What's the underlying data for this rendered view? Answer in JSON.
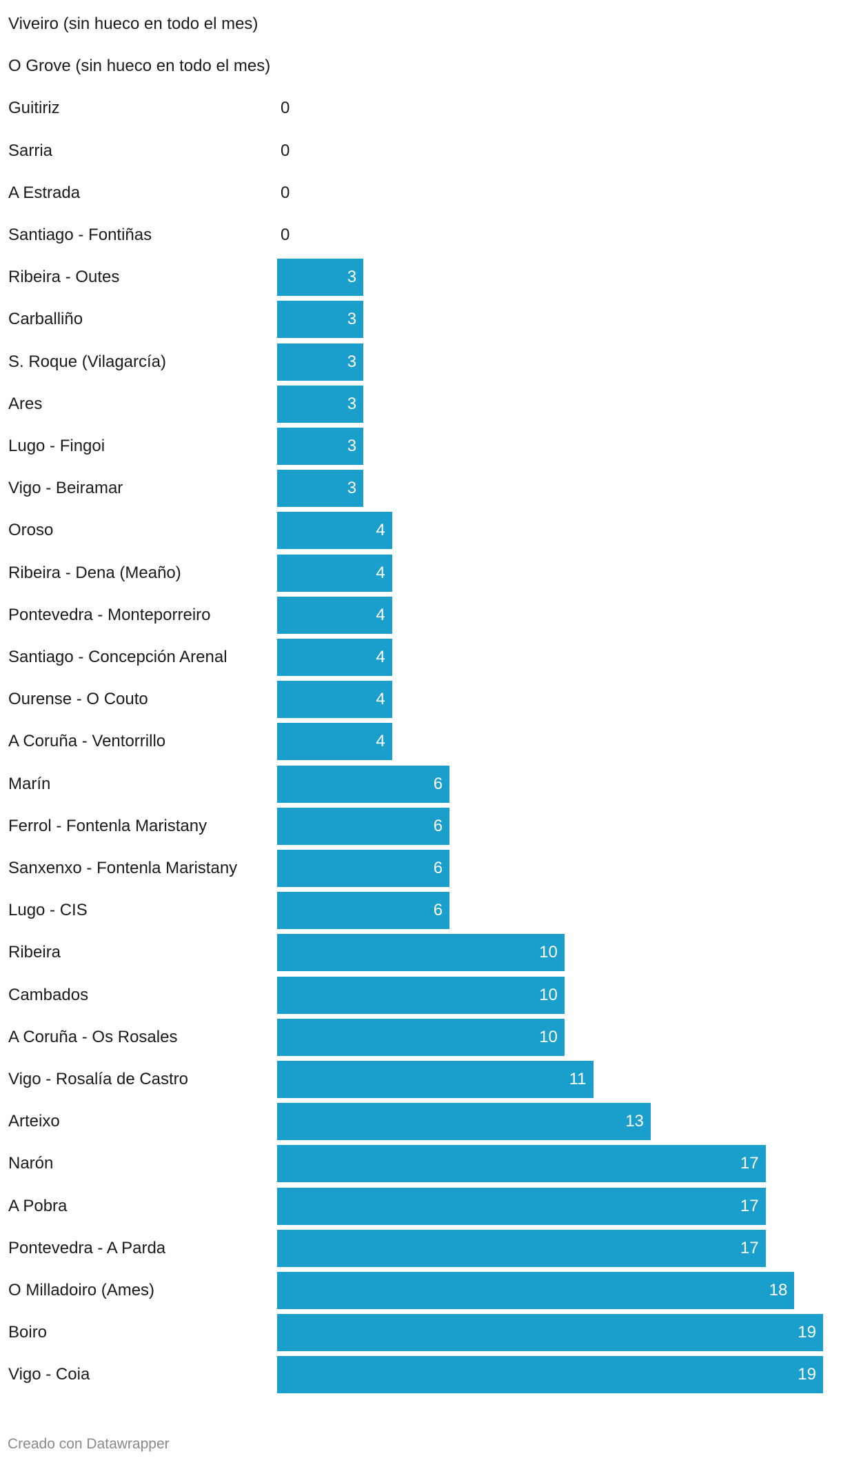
{
  "chart_data": {
    "type": "bar",
    "orientation": "horizontal",
    "categories": [
      "Viveiro (sin hueco en todo el mes)",
      "O Grove (sin hueco en todo el mes)",
      "Guitiriz",
      "Sarria",
      "A Estrada",
      "Santiago - Fontiñas",
      "Ribeira - Outes",
      "Carballiño",
      "S. Roque (Vilagarcía)",
      "Ares",
      "Lugo - Fingoi",
      "Vigo - Beiramar",
      "Oroso",
      "Ribeira - Dena (Meaño)",
      "Pontevedra - Monteporreiro",
      "Santiago - Concepción Arenal",
      "Ourense - O Couto",
      "A Coruña - Ventorrillo",
      "Marín",
      "Ferrol - Fontenla Maristany",
      "Sanxenxo - Fontenla Maristany",
      "Lugo - CIS",
      "Ribeira",
      "Cambados",
      "A Coruña - Os Rosales",
      "Vigo - Rosalía de Castro",
      "Arteixo",
      "Narón",
      "A Pobra",
      "Pontevedra - A Parda",
      "O Milladoiro (Ames)",
      "Boiro",
      "Vigo - Coia"
    ],
    "values": [
      null,
      null,
      0,
      0,
      0,
      0,
      3,
      3,
      3,
      3,
      3,
      3,
      4,
      4,
      4,
      4,
      4,
      4,
      6,
      6,
      6,
      6,
      10,
      10,
      10,
      11,
      13,
      17,
      17,
      17,
      18,
      19,
      19
    ],
    "value_labels": [
      "",
      "",
      "0",
      "0",
      "0",
      "0",
      "3",
      "3",
      "3",
      "3",
      "3",
      "3",
      "4",
      "4",
      "4",
      "4",
      "4",
      "4",
      "6",
      "6",
      "6",
      "6",
      "10",
      "10",
      "10",
      "11",
      "13",
      "17",
      "17",
      "17",
      "18",
      "19",
      "19"
    ],
    "xlim": [
      0,
      19
    ],
    "bar_color": "#1a9fcd",
    "title": "",
    "xlabel": "",
    "ylabel": ""
  },
  "footer": {
    "credit": "Creado con Datawrapper"
  }
}
